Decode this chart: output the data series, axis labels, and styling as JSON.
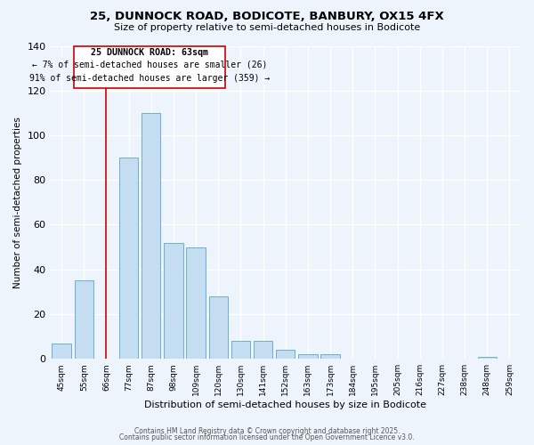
{
  "title": "25, DUNNOCK ROAD, BODICOTE, BANBURY, OX15 4FX",
  "subtitle": "Size of property relative to semi-detached houses in Bodicote",
  "xlabel": "Distribution of semi-detached houses by size in Bodicote",
  "ylabel": "Number of semi-detached properties",
  "bar_color": "#c5ddf0",
  "bar_edge_color": "#6baed6",
  "categories": [
    "45sqm",
    "55sqm",
    "66sqm",
    "77sqm",
    "87sqm",
    "98sqm",
    "109sqm",
    "120sqm",
    "130sqm",
    "141sqm",
    "152sqm",
    "163sqm",
    "173sqm",
    "184sqm",
    "195sqm",
    "205sqm",
    "216sqm",
    "227sqm",
    "238sqm",
    "248sqm",
    "259sqm"
  ],
  "values": [
    7,
    35,
    0,
    90,
    110,
    52,
    50,
    28,
    8,
    8,
    4,
    2,
    2,
    0,
    0,
    0,
    0,
    0,
    0,
    1,
    0
  ],
  "ylim": [
    0,
    140
  ],
  "yticks": [
    0,
    20,
    40,
    60,
    80,
    100,
    120,
    140
  ],
  "vline_index": 2,
  "vline_color": "#cc0000",
  "box_edge_color": "#cc0000",
  "marker_label": "25 DUNNOCK ROAD: 63sqm",
  "annotation_line1": "← 7% of semi-detached houses are smaller (26)",
  "annotation_line2": "91% of semi-detached houses are larger (359) →",
  "footer1": "Contains HM Land Registry data © Crown copyright and database right 2025.",
  "footer2": "Contains public sector information licensed under the Open Government Licence v3.0.",
  "background_color": "#edf4fb",
  "grid_color": "#ffffff"
}
